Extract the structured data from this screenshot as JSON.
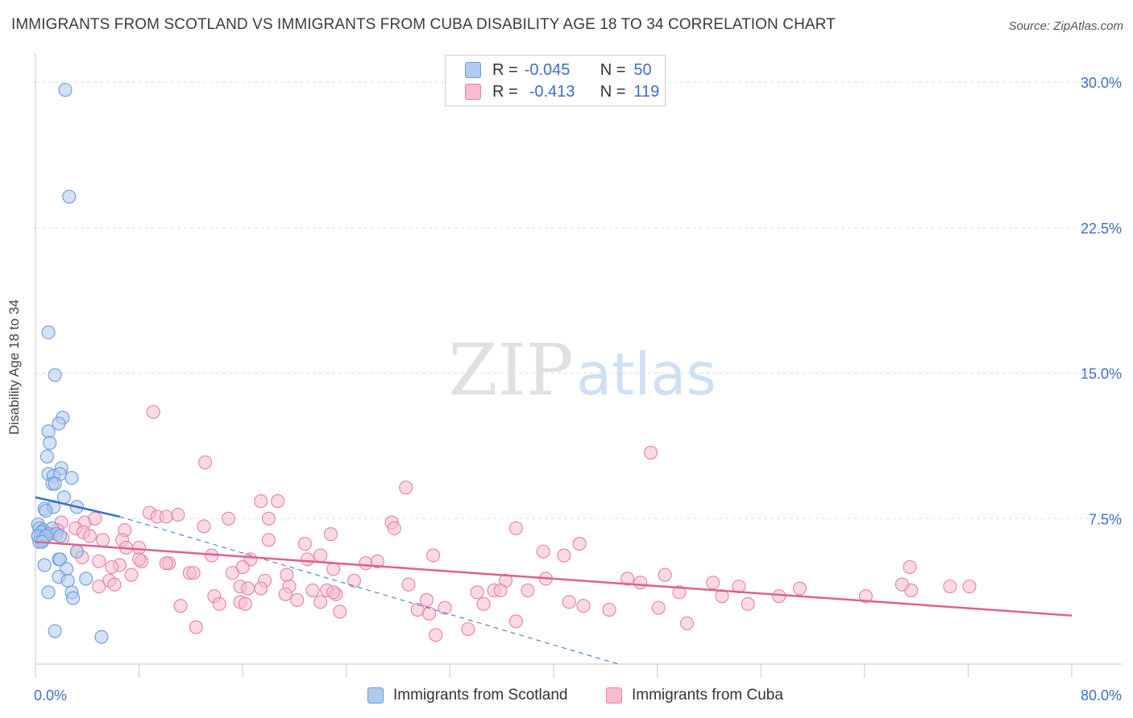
{
  "title": "IMMIGRANTS FROM SCOTLAND VS IMMIGRANTS FROM CUBA DISABILITY AGE 18 TO 34 CORRELATION CHART",
  "source": "Source: ZipAtlas.com",
  "watermark": {
    "zip": "ZIP",
    "atlas": "atlas"
  },
  "legend": {
    "rows": [
      {
        "r_label": "R =",
        "r_value": "-0.045",
        "n_label": "N =",
        "n_value": "50"
      },
      {
        "r_label": "R =",
        "r_value": "-0.413",
        "n_label": "N =",
        "n_value": "119"
      }
    ]
  },
  "colors": {
    "scotland_fill": "#aecbf0",
    "scotland_stroke": "#6d9ad6",
    "scotland_line": "#3471c9",
    "cuba_fill": "#f7bcd0",
    "cuba_stroke": "#e87fa3",
    "cuba_line": "#e0608e",
    "axis_label": "#3e6fc2",
    "grid": "#dcdcdc"
  },
  "chart_data": {
    "type": "scatter",
    "title": "IMMIGRANTS FROM SCOTLAND VS IMMIGRANTS FROM CUBA DISABILITY AGE 18 TO 34 CORRELATION CHART",
    "xlabel": "",
    "ylabel": "Disability Age 18 to 34",
    "xlim": [
      0,
      80
    ],
    "ylim": [
      0,
      31
    ],
    "x_tick_labels": {
      "left": "0.0%",
      "right": "80.0%"
    },
    "y_ticks": [
      {
        "value": 7.5,
        "label": "7.5%"
      },
      {
        "value": 15.0,
        "label": "15.0%"
      },
      {
        "value": 22.5,
        "label": "22.5%"
      },
      {
        "value": 30.0,
        "label": "30.0%"
      }
    ],
    "series": [
      {
        "name": "Immigrants from Scotland",
        "r": -0.045,
        "n": 50,
        "trend": {
          "x0": 0.0,
          "y0": 8.6,
          "x1": 6.5,
          "y1": 7.6,
          "dashed_to_x": 45.0,
          "dashed_to_y": 0.0
        },
        "points": [
          [
            2.3,
            29.6
          ],
          [
            2.6,
            24.1
          ],
          [
            1.0,
            17.1
          ],
          [
            1.5,
            14.9
          ],
          [
            2.1,
            12.7
          ],
          [
            1.8,
            12.4
          ],
          [
            1.0,
            12.0
          ],
          [
            1.1,
            11.4
          ],
          [
            0.9,
            10.7
          ],
          [
            2.0,
            10.1
          ],
          [
            1.0,
            9.8
          ],
          [
            1.4,
            9.7
          ],
          [
            1.9,
            9.8
          ],
          [
            2.8,
            9.6
          ],
          [
            1.3,
            9.3
          ],
          [
            1.5,
            9.3
          ],
          [
            2.2,
            8.6
          ],
          [
            0.7,
            8.0
          ],
          [
            1.4,
            8.1
          ],
          [
            3.2,
            8.1
          ],
          [
            0.8,
            7.9
          ],
          [
            0.2,
            7.2
          ],
          [
            0.3,
            7.0
          ],
          [
            0.6,
            6.9
          ],
          [
            0.5,
            6.8
          ],
          [
            0.2,
            6.6
          ],
          [
            0.4,
            6.5
          ],
          [
            0.7,
            6.5
          ],
          [
            1.3,
            7.0
          ],
          [
            1.0,
            6.7
          ],
          [
            1.6,
            6.7
          ],
          [
            1.9,
            6.6
          ],
          [
            0.3,
            6.3
          ],
          [
            0.6,
            6.4
          ],
          [
            0.2,
            6.6
          ],
          [
            0.8,
            6.6
          ],
          [
            0.5,
            6.3
          ],
          [
            3.2,
            5.8
          ],
          [
            1.8,
            5.4
          ],
          [
            0.7,
            5.1
          ],
          [
            1.9,
            5.4
          ],
          [
            2.4,
            4.9
          ],
          [
            1.8,
            4.5
          ],
          [
            3.9,
            4.4
          ],
          [
            2.5,
            4.3
          ],
          [
            1.0,
            3.7
          ],
          [
            2.8,
            3.7
          ],
          [
            2.9,
            3.4
          ],
          [
            1.5,
            1.7
          ],
          [
            5.1,
            1.4
          ]
        ]
      },
      {
        "name": "Immigrants from Cuba",
        "r": -0.413,
        "n": 119,
        "trend": {
          "x0": 0.0,
          "y0": 6.3,
          "x1": 80.0,
          "y1": 2.5
        },
        "points": [
          [
            9.1,
            13.0
          ],
          [
            13.1,
            10.4
          ],
          [
            47.5,
            10.9
          ],
          [
            28.6,
            9.1
          ],
          [
            18.7,
            8.4
          ],
          [
            17.4,
            8.4
          ],
          [
            8.8,
            7.8
          ],
          [
            9.4,
            7.6
          ],
          [
            10.1,
            7.6
          ],
          [
            11.0,
            7.7
          ],
          [
            14.9,
            7.5
          ],
          [
            18.0,
            7.5
          ],
          [
            27.5,
            7.3
          ],
          [
            13.0,
            7.1
          ],
          [
            2.0,
            7.3
          ],
          [
            3.8,
            7.3
          ],
          [
            4.6,
            7.5
          ],
          [
            3.1,
            7.0
          ],
          [
            3.7,
            6.8
          ],
          [
            1.7,
            6.9
          ],
          [
            1.0,
            6.7
          ],
          [
            0.4,
            6.8
          ],
          [
            2.1,
            6.5
          ],
          [
            4.2,
            6.6
          ],
          [
            5.2,
            6.4
          ],
          [
            6.9,
            6.9
          ],
          [
            27.7,
            7.0
          ],
          [
            37.1,
            7.0
          ],
          [
            22.8,
            6.7
          ],
          [
            18.0,
            6.4
          ],
          [
            6.7,
            6.4
          ],
          [
            8.0,
            6.0
          ],
          [
            20.8,
            6.2
          ],
          [
            42.0,
            6.2
          ],
          [
            39.2,
            5.8
          ],
          [
            3.2,
            5.8
          ],
          [
            13.6,
            5.6
          ],
          [
            22.0,
            5.6
          ],
          [
            21.0,
            5.4
          ],
          [
            30.7,
            5.6
          ],
          [
            40.8,
            5.6
          ],
          [
            16.6,
            5.4
          ],
          [
            4.9,
            5.3
          ],
          [
            6.5,
            5.1
          ],
          [
            8.2,
            5.3
          ],
          [
            10.3,
            5.2
          ],
          [
            10.1,
            5.2
          ],
          [
            5.9,
            5.0
          ],
          [
            25.5,
            5.2
          ],
          [
            16.0,
            5.0
          ],
          [
            23.0,
            4.9
          ],
          [
            11.9,
            4.7
          ],
          [
            12.2,
            4.7
          ],
          [
            15.2,
            4.7
          ],
          [
            7.4,
            4.6
          ],
          [
            19.4,
            4.6
          ],
          [
            24.6,
            4.3
          ],
          [
            17.7,
            4.3
          ],
          [
            5.7,
            4.3
          ],
          [
            6.1,
            4.1
          ],
          [
            4.9,
            4.0
          ],
          [
            28.8,
            4.1
          ],
          [
            39.4,
            4.4
          ],
          [
            36.3,
            4.3
          ],
          [
            45.7,
            4.4
          ],
          [
            46.7,
            4.2
          ],
          [
            48.6,
            4.6
          ],
          [
            52.3,
            4.2
          ],
          [
            54.3,
            4.0
          ],
          [
            67.6,
            3.8
          ],
          [
            70.6,
            4.0
          ],
          [
            72.1,
            4.0
          ],
          [
            15.8,
            4.0
          ],
          [
            16.4,
            3.9
          ],
          [
            17.4,
            3.9
          ],
          [
            19.6,
            4.0
          ],
          [
            21.4,
            3.8
          ],
          [
            22.5,
            3.8
          ],
          [
            23.2,
            3.6
          ],
          [
            30.2,
            3.3
          ],
          [
            34.1,
            3.7
          ],
          [
            35.4,
            3.8
          ],
          [
            35.9,
            3.8
          ],
          [
            38.0,
            3.8
          ],
          [
            49.7,
            3.7
          ],
          [
            53.0,
            3.5
          ],
          [
            57.4,
            3.5
          ],
          [
            64.1,
            3.5
          ],
          [
            59.0,
            3.9
          ],
          [
            13.8,
            3.5
          ],
          [
            19.3,
            3.6
          ],
          [
            20.2,
            3.3
          ],
          [
            23.0,
            3.7
          ],
          [
            14.2,
            3.1
          ],
          [
            15.8,
            3.2
          ],
          [
            16.2,
            3.1
          ],
          [
            11.2,
            3.0
          ],
          [
            22.0,
            3.2
          ],
          [
            29.5,
            2.8
          ],
          [
            31.6,
            2.9
          ],
          [
            34.6,
            3.1
          ],
          [
            41.2,
            3.2
          ],
          [
            42.3,
            3.0
          ],
          [
            44.3,
            2.8
          ],
          [
            48.1,
            2.9
          ],
          [
            55.0,
            3.1
          ],
          [
            23.5,
            2.7
          ],
          [
            30.4,
            2.6
          ],
          [
            33.4,
            1.8
          ],
          [
            37.1,
            2.2
          ],
          [
            12.4,
            1.9
          ],
          [
            30.9,
            1.5
          ],
          [
            50.3,
            2.1
          ],
          [
            67.5,
            5.0
          ],
          [
            66.9,
            4.1
          ],
          [
            3.6,
            5.5
          ],
          [
            8.0,
            5.4
          ],
          [
            26.4,
            5.3
          ],
          [
            7.0,
            6.0
          ]
        ]
      }
    ]
  },
  "bottom_legend": [
    {
      "label": "Immigrants from Scotland"
    },
    {
      "label": "Immigrants from Cuba"
    }
  ]
}
